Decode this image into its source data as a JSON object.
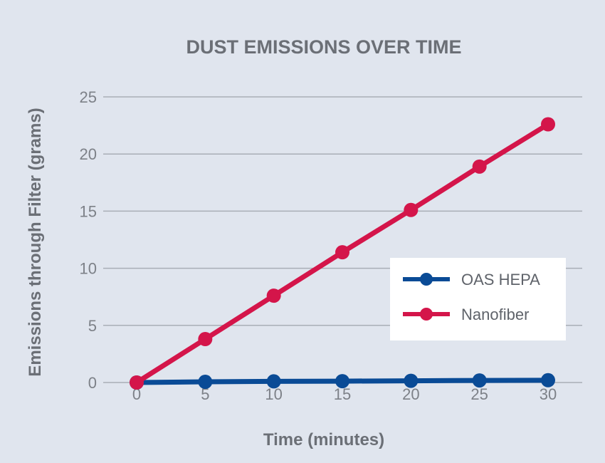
{
  "chart_data": {
    "type": "line",
    "title": "DUST EMISSIONS OVER TIME",
    "xlabel": "Time (minutes)",
    "ylabel": "Emissions through Filter (grams)",
    "x": [
      0,
      5,
      10,
      15,
      20,
      25,
      30
    ],
    "xlim": [
      0,
      30
    ],
    "ylim": [
      0,
      25
    ],
    "x_ticks": [
      "0",
      "5",
      "10",
      "15",
      "20",
      "25",
      "30"
    ],
    "y_ticks": [
      "0",
      "5",
      "10",
      "15",
      "20",
      "25"
    ],
    "grid": true,
    "legend_position": "right",
    "series": [
      {
        "name": "OAS HEPA",
        "color": "#0a4b96",
        "values": [
          0,
          0.06,
          0.1,
          0.12,
          0.15,
          0.18,
          0.2
        ]
      },
      {
        "name": "Nanofiber",
        "color": "#d4154a",
        "values": [
          0,
          3.8,
          7.6,
          11.4,
          15.1,
          18.9,
          22.6
        ]
      }
    ]
  }
}
